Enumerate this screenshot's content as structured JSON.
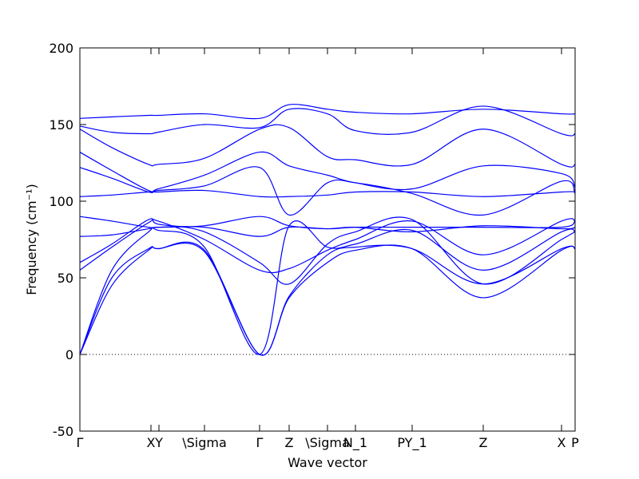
{
  "chart_data": {
    "type": "line",
    "xlabel": "Wave vector",
    "ylabel": "Frequency (cm⁻¹)",
    "xlim": [
      0,
      620
    ],
    "ylim": [
      -50,
      200
    ],
    "yticks": [
      -50,
      0,
      50,
      100,
      150,
      200
    ],
    "xticks": [
      {
        "value": 0,
        "label": "Γ"
      },
      {
        "value": 89,
        "label": "X"
      },
      {
        "value": 99,
        "label": "Y"
      },
      {
        "value": 156,
        "label": "\\Sigma"
      },
      {
        "value": 225,
        "label": "Γ"
      },
      {
        "value": 262,
        "label": "Z"
      },
      {
        "value": 310,
        "label": "\\Sigma"
      },
      {
        "value": 345,
        "label": "N_1"
      },
      {
        "value": 416,
        "label": "PY_1"
      },
      {
        "value": 505,
        "label": "Z"
      },
      {
        "value": 603,
        "label": "X"
      },
      {
        "value": 620,
        "label": "P"
      }
    ],
    "zero_line": true,
    "x": [
      0,
      40,
      86,
      98,
      156,
      225,
      262,
      310,
      345,
      416,
      505,
      603,
      620
    ],
    "series": [
      {
        "color": "#0000ff",
        "values": [
          0,
          45,
          68,
          69,
          67,
          0,
          37,
          60,
          68,
          69,
          37,
          68,
          69
        ]
      },
      {
        "color": "#0000ff",
        "values": [
          0,
          50,
          69,
          69,
          68,
          0,
          38,
          65,
          70,
          69,
          46,
          69,
          69
        ]
      },
      {
        "color": "#0000ff",
        "values": [
          0,
          55,
          80,
          81,
          70,
          0,
          84,
          70,
          72,
          81,
          55,
          80,
          80
        ]
      },
      {
        "color": "#0000ff",
        "values": [
          55,
          70,
          86,
          87,
          75,
          55,
          56,
          68,
          75,
          87,
          65,
          87,
          87
        ]
      },
      {
        "color": "#0000ff",
        "values": [
          60,
          72,
          88,
          85,
          80,
          60,
          46,
          72,
          80,
          88,
          46,
          75,
          80
        ]
      },
      {
        "color": "#0000ff",
        "values": [
          77,
          78,
          82,
          83,
          83,
          77,
          83,
          82,
          83,
          80,
          84,
          82,
          83
        ]
      },
      {
        "color": "#0000ff",
        "values": [
          90,
          87,
          83,
          83,
          84,
          90,
          84,
          82,
          83,
          83,
          83,
          83,
          87
        ]
      },
      {
        "color": "#0000ff",
        "values": [
          103,
          104,
          106,
          106,
          107,
          103,
          103,
          104,
          106,
          106,
          103,
          106,
          106
        ]
      },
      {
        "color": "#0000ff",
        "values": [
          122,
          115,
          106,
          107,
          110,
          122,
          91,
          112,
          112,
          105,
          91,
          113,
          105
        ]
      },
      {
        "color": "#0000ff",
        "values": [
          132,
          120,
          107,
          108,
          117,
          132,
          123,
          117,
          112,
          108,
          123,
          118,
          109
        ]
      },
      {
        "color": "#0000ff",
        "values": [
          147,
          135,
          124,
          124,
          128,
          147,
          148,
          129,
          127,
          124,
          147,
          124,
          124
        ]
      },
      {
        "color": "#0000ff",
        "values": [
          149,
          145,
          144,
          145,
          150,
          148,
          160,
          157,
          146,
          145,
          162,
          144,
          144
        ]
      },
      {
        "color": "#0000ff",
        "values": [
          154,
          155,
          156,
          156,
          157,
          154,
          163,
          160,
          158,
          157,
          160,
          157,
          157
        ]
      }
    ]
  }
}
